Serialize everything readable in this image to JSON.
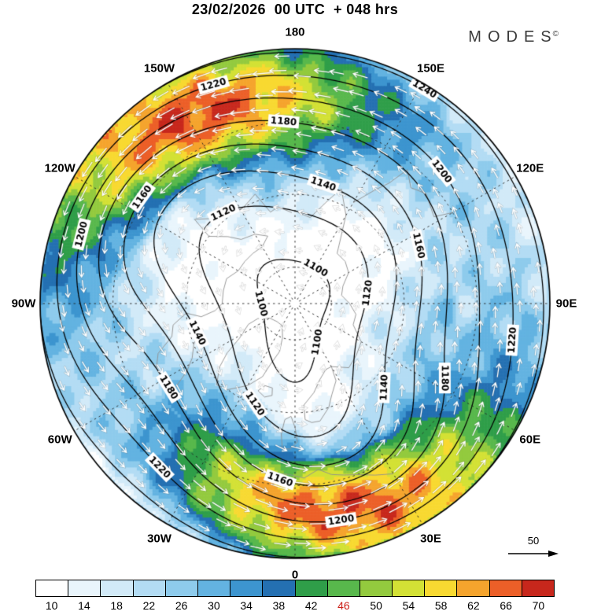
{
  "header": {
    "title": "23/02/2026  00 UTC  + 048 hrs",
    "brand": "MODES",
    "brand_mark": "©"
  },
  "map": {
    "projection": "north-polar-stereographic",
    "meridian_labels": [
      {
        "label": "180",
        "lon": 180
      },
      {
        "label": "150E",
        "lon": 150
      },
      {
        "label": "120E",
        "lon": 120
      },
      {
        "label": "90E",
        "lon": 90
      },
      {
        "label": "60E",
        "lon": 60
      },
      {
        "label": "30E",
        "lon": 30
      },
      {
        "label": "0",
        "lon": 0
      },
      {
        "label": "30W",
        "lon": -30
      },
      {
        "label": "60W",
        "lon": -60
      },
      {
        "label": "90W",
        "lon": -90
      },
      {
        "label": "120W",
        "lon": -120
      },
      {
        "label": "150W",
        "lon": -150
      }
    ]
  },
  "reference_arrow": {
    "label": "50"
  },
  "chart_data": {
    "type": "heatmap",
    "subtype": "polar-stereographic-filled-contour-map",
    "title": "23/02/2026  00 UTC  + 048 hrs",
    "contour_levels": [
      1100,
      1120,
      1140,
      1160,
      1180,
      1200,
      1220,
      1240
    ],
    "contour_interval": 20,
    "meridian_labels": [
      "180",
      "150E",
      "120E",
      "90E",
      "60E",
      "30E",
      "0",
      "30W",
      "60W",
      "90W",
      "120W",
      "150W"
    ],
    "wind_reference_value": 50,
    "colorbar": {
      "orientation": "horizontal",
      "position": "bottom",
      "ticks": [
        10,
        14,
        18,
        22,
        26,
        30,
        34,
        38,
        42,
        46,
        50,
        54,
        58,
        62,
        66,
        70
      ],
      "highlighted_tick": 46,
      "highlight_color": "#cc2018",
      "colors": [
        "#ffffff",
        "#e9f5fc",
        "#d2eaf8",
        "#b3dcf4",
        "#8ecbec",
        "#63b3e1",
        "#3d95cf",
        "#2470b2",
        "#2f9e49",
        "#58b84c",
        "#93ca3e",
        "#d3e135",
        "#f8d931",
        "#f5a42d",
        "#ec5f28",
        "#c7271c"
      ]
    }
  }
}
